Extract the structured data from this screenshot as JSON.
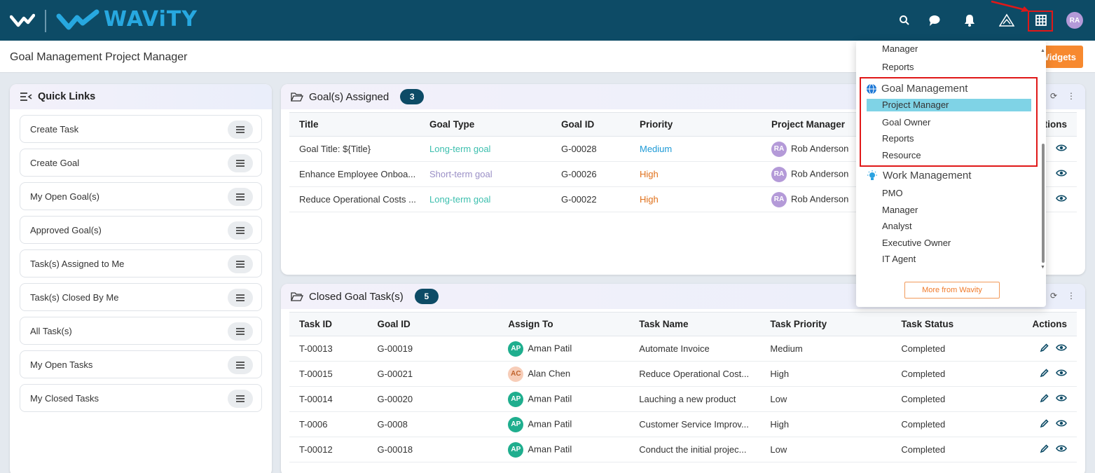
{
  "app": {
    "logo_text": "WAViTY",
    "page_title": "Goal Management Project Manager",
    "widgets_label": "Widgets",
    "avatar_initials": "RA"
  },
  "topbar_icons": [
    "search-icon",
    "chat-icon",
    "bell-icon",
    "alert-triangle-icon",
    "grid-icon"
  ],
  "colors": {
    "topbar": "#0d4b66",
    "accent_orange": "#f7892f",
    "logo_blue": "#27a8e0",
    "highlight": "#7fd3e6",
    "callout_red": "#e01818"
  },
  "quick_links": {
    "title": "Quick Links",
    "items": [
      "Create Task",
      "Create Goal",
      "My Open Goal(s)",
      "Approved Goal(s)",
      "Task(s) Assigned to Me",
      "Task(s) Closed By Me",
      "All Task(s)",
      "My Open Tasks",
      "My Closed Tasks"
    ]
  },
  "goals_assigned": {
    "title": "Goal(s) Assigned",
    "count": "3",
    "columns": [
      "Title",
      "Goal Type",
      "Goal ID",
      "Priority",
      "Project Manager",
      "Actions"
    ],
    "rows": [
      {
        "title": "Goal Title: ${Title}",
        "type": "Long-term goal",
        "id": "G-00028",
        "priority": "Medium",
        "pm_initials": "RA",
        "pm": "Rob Anderson"
      },
      {
        "title": "Enhance Employee Onboa...",
        "type": "Short-term goal",
        "id": "G-00026",
        "priority": "High",
        "pm_initials": "RA",
        "pm": "Rob Anderson"
      },
      {
        "title": "Reduce Operational Costs ...",
        "type": "Long-term goal",
        "id": "G-00022",
        "priority": "High",
        "pm_initials": "RA",
        "pm": "Rob Anderson"
      }
    ]
  },
  "closed_tasks": {
    "title": "Closed Goal Task(s)",
    "count": "5",
    "columns": [
      "Task ID",
      "Goal ID",
      "Assign To",
      "Task Name",
      "Task Priority",
      "Task Status",
      "Actions"
    ],
    "rows": [
      {
        "task_id": "T-00013",
        "goal_id": "G-00019",
        "initials": "AP",
        "assignee": "Aman Patil",
        "name": "Automate Invoice",
        "priority": "Medium",
        "status": "Completed"
      },
      {
        "task_id": "T-00015",
        "goal_id": "G-00021",
        "initials": "AC",
        "assignee": "Alan Chen",
        "name": "Reduce Operational Cost...",
        "priority": "High",
        "status": "Completed"
      },
      {
        "task_id": "T-00014",
        "goal_id": "G-00020",
        "initials": "AP",
        "assignee": "Aman Patil",
        "name": "Lauching a new product",
        "priority": "Low",
        "status": "Completed"
      },
      {
        "task_id": "T-0006",
        "goal_id": "G-0008",
        "initials": "AP",
        "assignee": "Aman Patil",
        "name": "Customer Service Improv...",
        "priority": "High",
        "status": "Completed"
      },
      {
        "task_id": "T-00012",
        "goal_id": "G-00018",
        "initials": "AP",
        "assignee": "Aman Patil",
        "name": "Conduct the initial projec...",
        "priority": "Low",
        "status": "Completed"
      }
    ]
  },
  "app_switcher": {
    "top_items": [
      "Manager",
      "Reports"
    ],
    "goal_section": {
      "label": "Goal Management",
      "items": [
        "Project Manager",
        "Goal Owner",
        "Reports",
        "Resource"
      ],
      "selected": "Project Manager"
    },
    "work_section": {
      "label": "Work Management",
      "items": [
        "PMO",
        "Manager",
        "Analyst",
        "Executive Owner",
        "IT Agent"
      ]
    },
    "more_label": "More from Wavity"
  }
}
